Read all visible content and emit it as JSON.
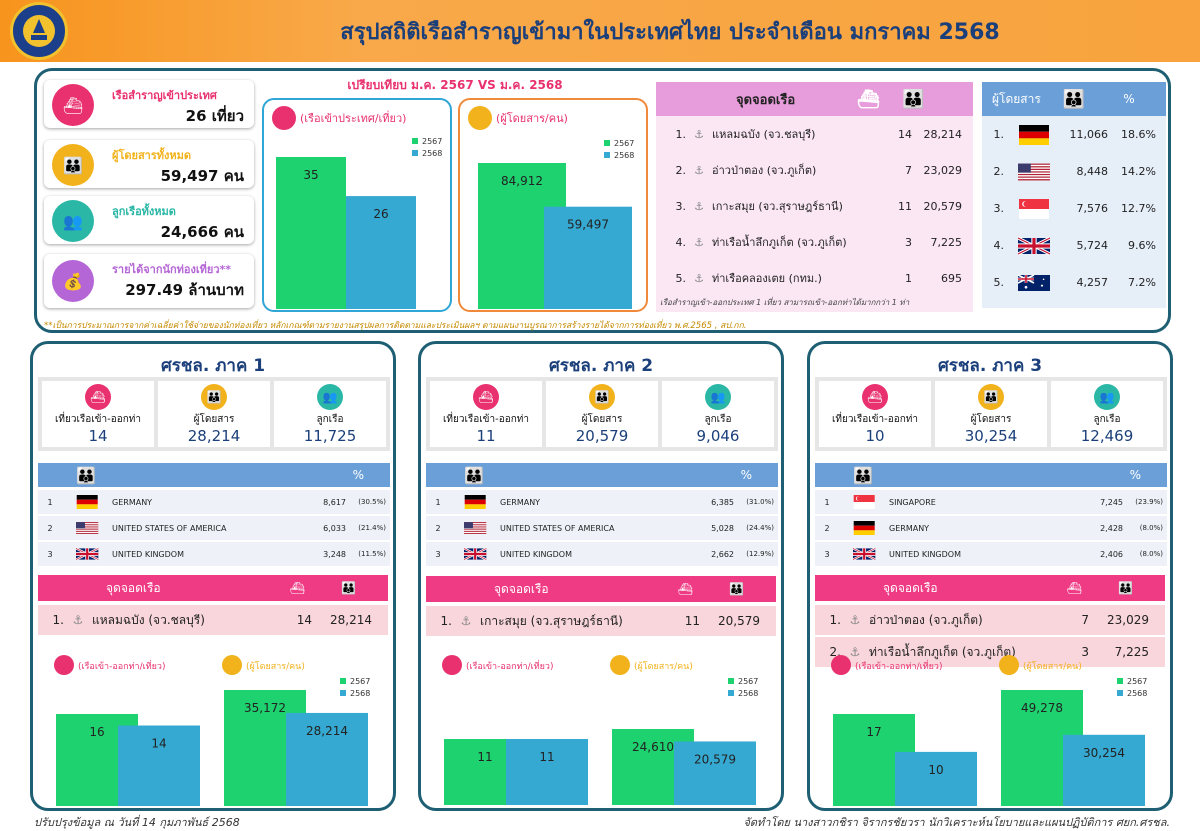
{
  "header": {
    "title": "สรุปสถิติเรือสำราญเข้ามาในประเทศไทย ประจำเดือน มกราคม 2568"
  },
  "summary": [
    {
      "label": "เรือสำราญเข้าประเทศ",
      "value": "26 เที่ยว",
      "color": "#e8316e"
    },
    {
      "label": "ผู้โดยสารทั้งหมด",
      "value": "59,497 คน",
      "color": "#f2b21b"
    },
    {
      "label": "ลูกเรือทั้งหมด",
      "value": "24,666 คน",
      "color": "#2bb7a6"
    },
    {
      "label": "รายได้จากนักท่องเที่ยว**",
      "value": "297.49 ล้านบาท",
      "color": "#b566d6"
    }
  ],
  "compare": {
    "title": "เปรียบเทียบ ม.ค. 2567 VS ม.ค. 2568",
    "footnote": "**เป็นการประมาณการจากค่าเฉลี่ยค่าใช้จ่ายของนักท่องเที่ยว หลักเกณฑ์ตามรายงานสรุปผลการติดตามและประเมินผลฯ ตามแผนงานบูรณาการสร้างรายได้จากการท่องเที่ยว พ.ศ.2565 , สป.กก."
  },
  "chart_data": [
    {
      "type": "bar",
      "title": "(เรือเข้าประเทศ/เที่ยว)",
      "categories": [
        "2567",
        "2568"
      ],
      "values": [
        35,
        26
      ],
      "labels": [
        "35",
        "26"
      ]
    },
    {
      "type": "bar",
      "title": "(ผู้โดยสาร/คน)",
      "categories": [
        "2567",
        "2568"
      ],
      "values": [
        84912,
        59497
      ],
      "labels": [
        "84,912",
        "59,497"
      ]
    },
    {
      "type": "bar",
      "title": "(เรือเข้า-ออกท่า/เที่ยว)",
      "categories": [
        "2567",
        "2568"
      ],
      "values": [
        16,
        14
      ],
      "labels": [
        "16",
        "14"
      ]
    },
    {
      "type": "bar",
      "title": "(ผู้โดยสาร/คน)",
      "categories": [
        "2567",
        "2568"
      ],
      "values": [
        35172,
        28214
      ],
      "labels": [
        "35,172",
        "28,214"
      ]
    },
    {
      "type": "bar",
      "title": "(เรือเข้า-ออกท่า/เที่ยว)",
      "categories": [
        "2567",
        "2568"
      ],
      "values": [
        11,
        11
      ],
      "labels": [
        "11",
        "11"
      ]
    },
    {
      "type": "bar",
      "title": "(ผู้โดยสาร/คน)",
      "categories": [
        "2567",
        "2568"
      ],
      "values": [
        24610,
        20579
      ],
      "labels": [
        "24,610",
        "20,579"
      ]
    },
    {
      "type": "bar",
      "title": "(เรือเข้า-ออกท่า/เที่ยว)",
      "categories": [
        "2567",
        "2568"
      ],
      "values": [
        17,
        10
      ],
      "labels": [
        "17",
        "10"
      ]
    },
    {
      "type": "bar",
      "title": "(ผู้โดยสาร/คน)",
      "categories": [
        "2567",
        "2568"
      ],
      "values": [
        49278,
        30254
      ],
      "labels": [
        "49,278",
        "30,254"
      ]
    }
  ],
  "legend": {
    "y2567": "2567",
    "y2568": "2568",
    "c2567": "#1ed36f",
    "c2568": "#35a9d1"
  },
  "ports": {
    "title": "จุดจอดเรือ",
    "rows": [
      {
        "n": "1.",
        "name": "แหลมฉบัง (จว.ชลบุรี)",
        "ships": "14",
        "pax": "28,214"
      },
      {
        "n": "2.",
        "name": "อ่าวป่าตอง (จว.ภูเก็ต)",
        "ships": "7",
        "pax": "23,029"
      },
      {
        "n": "3.",
        "name": "เกาะสมุย (จว.สุราษฎร์ธานี)",
        "ships": "11",
        "pax": "20,579"
      },
      {
        "n": "4.",
        "name": "ท่าเรือน้ำลึกภูเก็ต (จว.ภูเก็ต)",
        "ships": "3",
        "pax": "7,225"
      },
      {
        "n": "5.",
        "name": "ท่าเรือคลองเตย (กทม.)",
        "ships": "1",
        "pax": "695"
      }
    ],
    "note": "เรือสำราญเข้า-ออกประเทศ 1 เที่ยว สามารถเข้า-ออกท่าได้มากกว่า 1 ท่า"
  },
  "passengers": {
    "title": "ผู้โดยสาร",
    "pct": "%",
    "rows": [
      {
        "n": "1.",
        "flag": "germany",
        "value": "11,066",
        "pct": "18.6%"
      },
      {
        "n": "2.",
        "flag": "usa",
        "value": "8,448",
        "pct": "14.2%"
      },
      {
        "n": "3.",
        "flag": "singapore",
        "value": "7,576",
        "pct": "12.7%"
      },
      {
        "n": "4.",
        "flag": "uk",
        "value": "5,724",
        "pct": "9.6%"
      },
      {
        "n": "5.",
        "flag": "australia",
        "value": "4,257",
        "pct": "7.2%"
      }
    ]
  },
  "regions": [
    {
      "title": "ศรชล. ภาค 1",
      "stats": [
        {
          "label": "เที่ยวเรือเข้า-ออกท่า",
          "value": "14"
        },
        {
          "label": "ผู้โดยสาร",
          "value": "28,214"
        },
        {
          "label": "ลูกเรือ",
          "value": "11,725"
        }
      ],
      "pct": "%",
      "countries": [
        {
          "n": "1",
          "flag": "germany",
          "name": "GERMANY",
          "value": "8,617",
          "pct": "(30.5%)"
        },
        {
          "n": "2",
          "flag": "usa",
          "name": "UNITED STATES OF AMERICA",
          "value": "6,033",
          "pct": "(21.4%)"
        },
        {
          "n": "3",
          "flag": "uk",
          "name": "UNITED KINGDOM",
          "value": "3,248",
          "pct": "(11.5%)"
        }
      ],
      "ports_title": "จุดจอดเรือ",
      "ports": [
        {
          "n": "1.",
          "name": "แหลมฉบัง (จว.ชลบุรี)",
          "ships": "14",
          "pax": "28,214"
        }
      ]
    },
    {
      "title": "ศรชล. ภาค 2",
      "stats": [
        {
          "label": "เที่ยวเรือเข้า-ออกท่า",
          "value": "11"
        },
        {
          "label": "ผู้โดยสาร",
          "value": "20,579"
        },
        {
          "label": "ลูกเรือ",
          "value": "9,046"
        }
      ],
      "pct": "%",
      "countries": [
        {
          "n": "1",
          "flag": "germany",
          "name": "GERMANY",
          "value": "6,385",
          "pct": "(31.0%)"
        },
        {
          "n": "2",
          "flag": "usa",
          "name": "UNITED STATES OF AMERICA",
          "value": "5,028",
          "pct": "(24.4%)"
        },
        {
          "n": "3",
          "flag": "uk",
          "name": "UNITED KINGDOM",
          "value": "2,662",
          "pct": "(12.9%)"
        }
      ],
      "ports_title": "จุดจอดเรือ",
      "ports": [
        {
          "n": "1.",
          "name": "เกาะสมุย (จว.สุราษฎร์ธานี)",
          "ships": "11",
          "pax": "20,579"
        }
      ]
    },
    {
      "title": "ศรชล. ภาค 3",
      "stats": [
        {
          "label": "เที่ยวเรือเข้า-ออกท่า",
          "value": "10"
        },
        {
          "label": "ผู้โดยสาร",
          "value": "30,254"
        },
        {
          "label": "ลูกเรือ",
          "value": "12,469"
        }
      ],
      "pct": "%",
      "countries": [
        {
          "n": "1",
          "flag": "singapore",
          "name": "SINGAPORE",
          "value": "7,245",
          "pct": "(23.9%)"
        },
        {
          "n": "2",
          "flag": "germany",
          "name": "GERMANY",
          "value": "2,428",
          "pct": "(8.0%)"
        },
        {
          "n": "3",
          "flag": "uk",
          "name": "UNITED KINGDOM",
          "value": "2,406",
          "pct": "(8.0%)"
        }
      ],
      "ports_title": "จุดจอดเรือ",
      "ports": [
        {
          "n": "1.",
          "name": "อ่าวป่าตอง (จว.ภูเก็ต)",
          "ships": "7",
          "pax": "23,029"
        },
        {
          "n": "2.",
          "name": "ท่าเรือน้ำลึกภูเก็ต (จว.ภูเก็ต)",
          "ships": "3",
          "pax": "7,225"
        }
      ]
    }
  ],
  "footer": {
    "updated": "ปรับปรุงข้อมูล ณ วันที่ 14 กุมภาพันธ์ 2568",
    "credit": "จัดทำโดย นางสาวกชิรา จิรากรชัยวรา นักวิเคราะห์นโยบายและแผนปฏิบัติการ ศยก.ศรชล."
  }
}
